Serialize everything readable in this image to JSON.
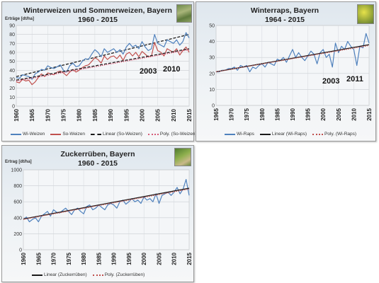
{
  "chart_data": [
    {
      "type": "line",
      "title_line1": "Winterweizen und Sommerweizen, Bayern",
      "title_line2": "1960 - 2015",
      "ylabel": "Erträge [dt/ha]",
      "ylim": [
        0,
        90
      ],
      "yticks": [
        0,
        10,
        20,
        30,
        40,
        50,
        60,
        70,
        80,
        90
      ],
      "xlim": [
        1960,
        2015
      ],
      "xticks": [
        1960,
        1965,
        1970,
        1975,
        1980,
        1985,
        1990,
        1995,
        2000,
        2005,
        2010,
        2015
      ],
      "grid": true,
      "annotations": [
        "2003",
        "2010"
      ],
      "legend_position": "bottom",
      "x": [
        1960,
        1961,
        1962,
        1963,
        1964,
        1965,
        1966,
        1967,
        1968,
        1969,
        1970,
        1971,
        1972,
        1973,
        1974,
        1975,
        1976,
        1977,
        1978,
        1979,
        1980,
        1981,
        1982,
        1983,
        1984,
        1985,
        1986,
        1987,
        1988,
        1989,
        1990,
        1991,
        1992,
        1993,
        1994,
        1995,
        1996,
        1997,
        1998,
        1999,
        2000,
        2001,
        2002,
        2003,
        2004,
        2005,
        2006,
        2007,
        2008,
        2009,
        2010,
        2011,
        2012,
        2013,
        2014,
        2015
      ],
      "series": [
        {
          "name": "Wi-Weizen",
          "color": "#4f81bd",
          "style": "solid",
          "values": [
            32,
            31,
            35,
            34,
            33,
            30,
            36,
            38,
            41,
            40,
            45,
            43,
            42,
            44,
            46,
            40,
            38,
            45,
            48,
            44,
            45,
            50,
            53,
            52,
            58,
            63,
            60,
            55,
            64,
            60,
            62,
            64,
            60,
            63,
            58,
            66,
            70,
            66,
            68,
            64,
            72,
            66,
            62,
            64,
            80,
            70,
            68,
            66,
            74,
            72,
            70,
            74,
            68,
            72,
            82,
            76
          ]
        },
        {
          "name": "So-Weizen",
          "color": "#c0504d",
          "style": "solid",
          "values": [
            27,
            26,
            30,
            28,
            29,
            24,
            27,
            32,
            36,
            33,
            37,
            36,
            35,
            38,
            39,
            37,
            34,
            38,
            41,
            38,
            40,
            43,
            45,
            46,
            50,
            54,
            52,
            48,
            56,
            52,
            55,
            56,
            53,
            57,
            51,
            58,
            60,
            56,
            60,
            55,
            61,
            58,
            55,
            56,
            71,
            62,
            60,
            56,
            64,
            62,
            60,
            64,
            57,
            62,
            66,
            60
          ]
        },
        {
          "name": "Linear (So-Weizen)",
          "color": "#1a1a1a",
          "style": "dashed",
          "trend": "linear",
          "start": 29,
          "end": 64
        },
        {
          "name": "Poly. (So-Weizen)",
          "color": "#d65c78",
          "style": "dotted",
          "trend": "poly",
          "start": 28,
          "end": 63
        }
      ],
      "extra_trend": {
        "color": "#1a1a1a",
        "style": "dashed",
        "start": 33,
        "end": 80
      }
    },
    {
      "type": "line",
      "title_line1": "Winterraps, Bayern",
      "title_line2": "1964 - 2015",
      "ylabel": "",
      "ylim": [
        0,
        50
      ],
      "yticks": [
        0,
        10,
        20,
        30,
        40,
        50
      ],
      "xlim": [
        1965,
        2015
      ],
      "xticks": [
        1965,
        1970,
        1975,
        1980,
        1985,
        1990,
        1995,
        2000,
        2005,
        2010,
        2015
      ],
      "grid": true,
      "annotations": [
        "2003",
        "2011"
      ],
      "legend_position": "bottom",
      "x": [
        1965,
        1966,
        1967,
        1968,
        1969,
        1970,
        1971,
        1972,
        1973,
        1974,
        1975,
        1976,
        1977,
        1978,
        1979,
        1980,
        1981,
        1982,
        1983,
        1984,
        1985,
        1986,
        1987,
        1988,
        1989,
        1990,
        1991,
        1992,
        1993,
        1994,
        1995,
        1996,
        1997,
        1998,
        1999,
        2000,
        2001,
        2002,
        2003,
        2004,
        2005,
        2006,
        2007,
        2008,
        2009,
        2010,
        2011,
        2012,
        2013,
        2014,
        2015
      ],
      "series": [
        {
          "name": "Wi-Raps",
          "color": "#4f81bd",
          "style": "solid",
          "values": [
            21,
            21,
            22,
            22,
            23,
            23,
            24,
            22,
            25,
            24,
            25,
            21,
            24,
            23,
            25,
            26,
            24,
            27,
            26,
            25,
            29,
            28,
            30,
            27,
            31,
            35,
            30,
            33,
            30,
            28,
            31,
            34,
            32,
            26,
            33,
            35,
            30,
            32,
            24,
            39,
            33,
            37,
            35,
            40,
            37,
            35,
            25,
            37,
            36,
            45,
            39
          ]
        },
        {
          "name": "Linear (Wi-Raps)",
          "color": "#1a1a1a",
          "style": "solid",
          "trend": "linear",
          "start": 21,
          "end": 38
        },
        {
          "name": "Poly. (Wi-Raps)",
          "color": "#c0504d",
          "style": "dotted",
          "trend": "poly",
          "start": 21,
          "end": 37.5
        }
      ]
    },
    {
      "type": "line",
      "title_line1": "Zuckerrüben, Bayern",
      "title_line2": "1960 - 2015",
      "ylabel": "Ertrag [dt/ha]",
      "ylim": [
        0,
        1000
      ],
      "yticks": [
        0,
        200,
        400,
        600,
        800,
        1000
      ],
      "xlim": [
        1960,
        2015
      ],
      "xticks": [
        1960,
        1965,
        1970,
        1975,
        1980,
        1985,
        1990,
        1995,
        2000,
        2005,
        2010,
        2015
      ],
      "grid": true,
      "annotations": [],
      "legend_position": "bottom",
      "x": [
        1960,
        1961,
        1962,
        1963,
        1964,
        1965,
        1966,
        1967,
        1968,
        1969,
        1970,
        1971,
        1972,
        1973,
        1974,
        1975,
        1976,
        1977,
        1978,
        1979,
        1980,
        1981,
        1982,
        1983,
        1984,
        1985,
        1986,
        1987,
        1988,
        1989,
        1990,
        1991,
        1992,
        1993,
        1994,
        1995,
        1996,
        1997,
        1998,
        1999,
        2000,
        2001,
        2002,
        2003,
        2004,
        2005,
        2006,
        2007,
        2008,
        2009,
        2010,
        2011,
        2012,
        2013,
        2014,
        2015
      ],
      "series": [
        {
          "name": "Zuckerrüben",
          "color": "#4f81bd",
          "style": "solid",
          "in_legend": false,
          "values": [
            380,
            410,
            350,
            380,
            400,
            350,
            420,
            450,
            480,
            420,
            500,
            470,
            460,
            490,
            520,
            480,
            440,
            500,
            520,
            480,
            450,
            540,
            560,
            500,
            520,
            560,
            530,
            500,
            560,
            580,
            560,
            520,
            600,
            620,
            570,
            600,
            640,
            600,
            620,
            580,
            660,
            620,
            640,
            600,
            700,
            580,
            680,
            700,
            720,
            680,
            720,
            780,
            700,
            760,
            880,
            680
          ]
        },
        {
          "name": "Linear (Zuckerrüben)",
          "color": "#1a1a1a",
          "style": "solid",
          "trend": "linear",
          "start": 385,
          "end": 770
        },
        {
          "name": "Poly. (Zuckerrüben)",
          "color": "#c0504d",
          "style": "dotted",
          "trend": "poly",
          "start": 380,
          "end": 760
        }
      ]
    }
  ]
}
